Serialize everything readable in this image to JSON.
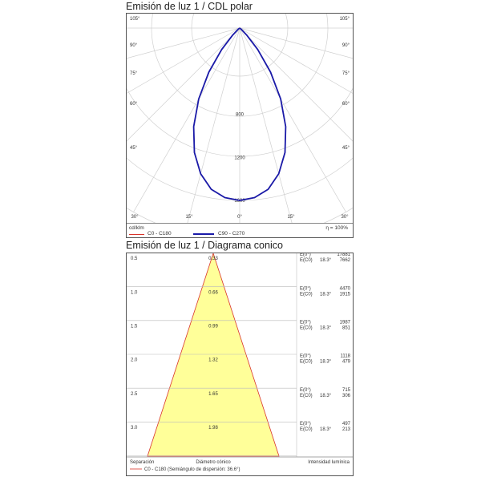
{
  "polar": {
    "title": "Emisión de luz 1 / CDL polar",
    "unit": "cd/klm",
    "efficiency": "η = 100%",
    "angle_labels_top": [
      "105°",
      "90°",
      "75°",
      "60°",
      "45°"
    ],
    "angle_labels_bottom": [
      "30°",
      "15°",
      "0°",
      "15°",
      "30°"
    ],
    "radial_labels": [
      "800",
      "1200",
      "1600"
    ],
    "legend": [
      {
        "name": "C0 - C180",
        "color": "#d9342b"
      },
      {
        "name": "C90 - C270",
        "color": "#1a1aa8"
      }
    ]
  },
  "chart_data": [
    {
      "type": "line",
      "subtype": "polar",
      "title": "Emisión de luz 1 / CDL polar",
      "unit": "cd/klm",
      "radial_ticks": [
        800,
        1200,
        1600
      ],
      "series": [
        {
          "name": "C0 - C180",
          "color": "#d9342b",
          "angles_deg": [
            0,
            5,
            10,
            15,
            20,
            25,
            30,
            35,
            40,
            45,
            50,
            55,
            60
          ],
          "values": [
            1600,
            1580,
            1520,
            1400,
            1230,
            1010,
            760,
            500,
            260,
            90,
            20,
            5,
            0
          ]
        },
        {
          "name": "C90 - C270",
          "color": "#1a1aa8",
          "angles_deg": [
            0,
            5,
            10,
            15,
            20,
            25,
            30,
            35,
            40,
            45,
            50,
            55,
            60
          ],
          "values": [
            1600,
            1580,
            1520,
            1400,
            1230,
            1010,
            760,
            500,
            260,
            90,
            20,
            5,
            0
          ]
        }
      ]
    },
    {
      "type": "table",
      "subtype": "cone-diagram",
      "title": "Emisión de luz 1 / Diagrama conico",
      "columns": [
        "Separación",
        "Diámetro cónico",
        "Intensidad lumínica"
      ],
      "rows": [
        {
          "separation": "0.5",
          "diameter": "0.33",
          "e0": "17881",
          "ec0": "7662"
        },
        {
          "separation": "1.0",
          "diameter": "0.66",
          "e0": "4470",
          "ec0": "1915"
        },
        {
          "separation": "1.5",
          "diameter": "0.99",
          "e0": "1987",
          "ec0": "851"
        },
        {
          "separation": "2.0",
          "diameter": "1.32",
          "e0": "1118",
          "ec0": "479"
        },
        {
          "separation": "2.5",
          "diameter": "1.65",
          "e0": "715",
          "ec0": "306"
        },
        {
          "separation": "3.0",
          "diameter": "1.98",
          "e0": "497",
          "ec0": "213"
        }
      ]
    }
  ],
  "cone": {
    "title": "Emisión de luz 1 / Diagrama conico",
    "e0_label": "E(0°)",
    "ec0_label": "E(C0)",
    "angle": "18.3°",
    "fill_color": "#ffff99",
    "edge_color": "#d9342b",
    "footer": {
      "col1": "Separación",
      "col2": "Diámetro cónico",
      "col3": "Intensidad lumínica",
      "legend": "C0 - C180 (Semiángulo de dispersión: 36.6°)"
    }
  }
}
